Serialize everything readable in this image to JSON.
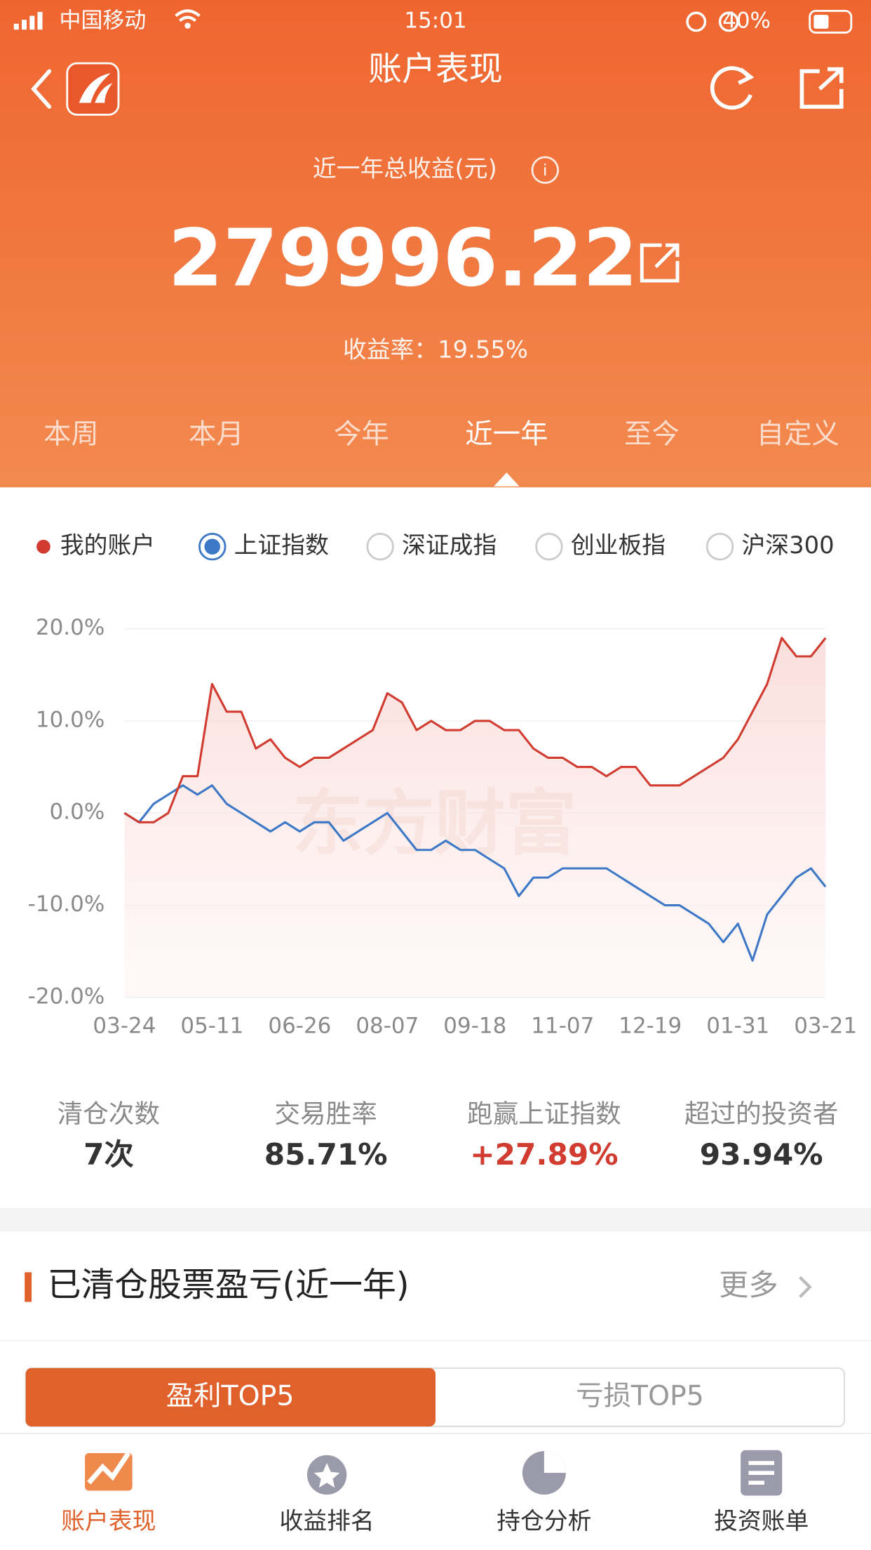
{
  "status_bar": {
    "carrier": "中国移动",
    "time": "15:01",
    "battery": "40%"
  },
  "header": {
    "title": "账户表现"
  },
  "summary": {
    "label": "近一年总收益(元)",
    "value": "279996.22",
    "rate": "收益率：19.55%"
  },
  "tabs": {
    "items": [
      "本周",
      "本月",
      "今年",
      "近一年",
      "至今",
      "自定义"
    ],
    "active": 3
  },
  "index_options": [
    "深证成指",
    "创业板指",
    "沪深300"
  ],
  "chart_data": {
    "type": "line",
    "watermark": "东方财富",
    "categories": [
      "03-24",
      null,
      null,
      null,
      null,
      null,
      "05-11",
      null,
      null,
      null,
      null,
      null,
      "06-26",
      null,
      null,
      null,
      null,
      null,
      "08-07",
      null,
      null,
      null,
      null,
      null,
      "09-18",
      null,
      null,
      null,
      null,
      null,
      "11-07",
      null,
      null,
      null,
      null,
      null,
      "12-19",
      null,
      null,
      null,
      null,
      null,
      "01-31",
      null,
      null,
      null,
      null,
      null,
      "03-21"
    ],
    "series": [
      {
        "name": "我的账户",
        "color": "#d23b30",
        "values": [
          0,
          -1,
          -1,
          0,
          4,
          4,
          14,
          11,
          11,
          7,
          8,
          6,
          5,
          6,
          6,
          7,
          8,
          9,
          13,
          12,
          9,
          10,
          9,
          9,
          10,
          10,
          9,
          9,
          7,
          6,
          6,
          5,
          5,
          4,
          5,
          5,
          3,
          3,
          3,
          4,
          5,
          6,
          8,
          11,
          14,
          19,
          17,
          17,
          19
        ]
      },
      {
        "name": "上证指数",
        "color": "#3d78c6",
        "values": [
          0,
          -1,
          1,
          2,
          3,
          2,
          3,
          1,
          0,
          -1,
          -2,
          -1,
          -2,
          -1,
          -1,
          -3,
          -2,
          -1,
          0,
          -2,
          -4,
          -4,
          -3,
          -4,
          -4,
          -5,
          -6,
          -9,
          -7,
          -7,
          -6,
          -6,
          -6,
          -6,
          -7,
          -8,
          -9,
          -10,
          -10,
          -11,
          -12,
          -14,
          -12,
          -16,
          -11,
          -9,
          -7,
          -6,
          -8
        ]
      }
    ],
    "ylim": [
      -20,
      20
    ],
    "yticks": [
      {
        "value": -20,
        "label": "-20.0%"
      },
      {
        "value": -10,
        "label": "-10.0%"
      },
      {
        "value": 0,
        "label": "0.0%"
      },
      {
        "value": 10,
        "label": "10.0%"
      },
      {
        "value": 20,
        "label": "20.0%"
      }
    ],
    "grid": true
  },
  "stats": {
    "labels": [
      "清仓次数",
      "交易胜率",
      "跑赢上证指数",
      "超过的投资者"
    ],
    "values": [
      "7次",
      "85.71%",
      "+27.89%",
      "93.94%"
    ]
  },
  "section": {
    "title": "已清仓股票盈亏(近一年)",
    "more": "更多"
  },
  "toggle": {
    "items": [
      "盈利TOP5",
      "亏损TOP5"
    ],
    "active": 0
  },
  "bottom_nav": {
    "items": [
      "账户表现",
      "收益排名",
      "持仓分析",
      "投资账单"
    ],
    "active": 0
  }
}
